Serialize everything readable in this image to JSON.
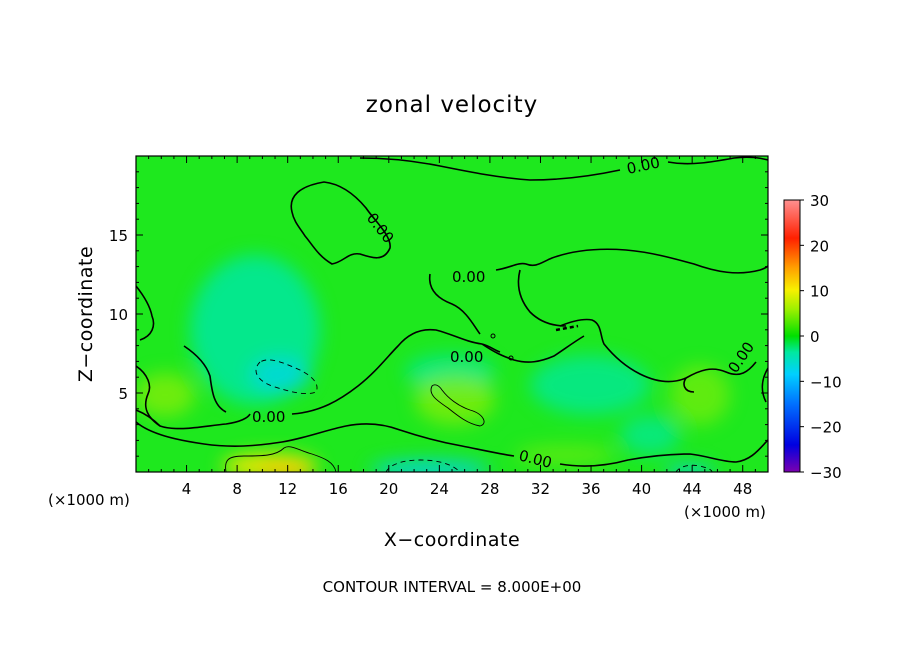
{
  "chart_data": {
    "type": "heatmap",
    "title": "zonal velocity",
    "xlabel": "X−coordinate",
    "ylabel": "Z−coordinate",
    "x_unit_note": "(×1000 m)",
    "z_unit_note": "(×1000 m)",
    "xlim": [
      0,
      50
    ],
    "ylim": [
      0,
      20
    ],
    "x_ticks": [
      4,
      8,
      12,
      16,
      20,
      24,
      28,
      32,
      36,
      40,
      44,
      48
    ],
    "y_ticks": [
      5,
      10,
      15
    ],
    "colorbar": {
      "ticks": [
        30,
        20,
        10,
        0,
        -10,
        -20,
        -30
      ],
      "tick_labels": [
        "30",
        "20",
        "10",
        "0",
        "−10",
        "−20",
        "−30"
      ],
      "range": [
        -30,
        30
      ],
      "colors": [
        "#7b00b0",
        "#0000e0",
        "#0070ff",
        "#00d0ff",
        "#00e8a0",
        "#00e000",
        "#a0f000",
        "#f8f000",
        "#ffa000",
        "#ff2000",
        "#ff9090"
      ]
    },
    "contour_interval": 8,
    "contour_labels": [
      "0.00",
      "0.00",
      "0.00",
      "0.00",
      "0.00",
      "0.00",
      "0.00"
    ],
    "grid": false,
    "colorbar_placement": "right",
    "features": [
      {
        "kind": "positive_max",
        "x": 11,
        "z": 0.5,
        "value": 10
      },
      {
        "kind": "negative_min",
        "x": 12,
        "z": 6.0,
        "value": -9
      },
      {
        "kind": "positive_max",
        "x": 24.5,
        "z": 4.5,
        "value": 8
      },
      {
        "kind": "negative_min",
        "x": 24,
        "z": 0.3,
        "value": -8
      },
      {
        "kind": "negative_min",
        "x": 43.5,
        "z": 0.3,
        "value": -7
      }
    ]
  },
  "footer": {
    "contour_interval_text": "CONTOUR INTERVAL = 8.000E+00"
  }
}
